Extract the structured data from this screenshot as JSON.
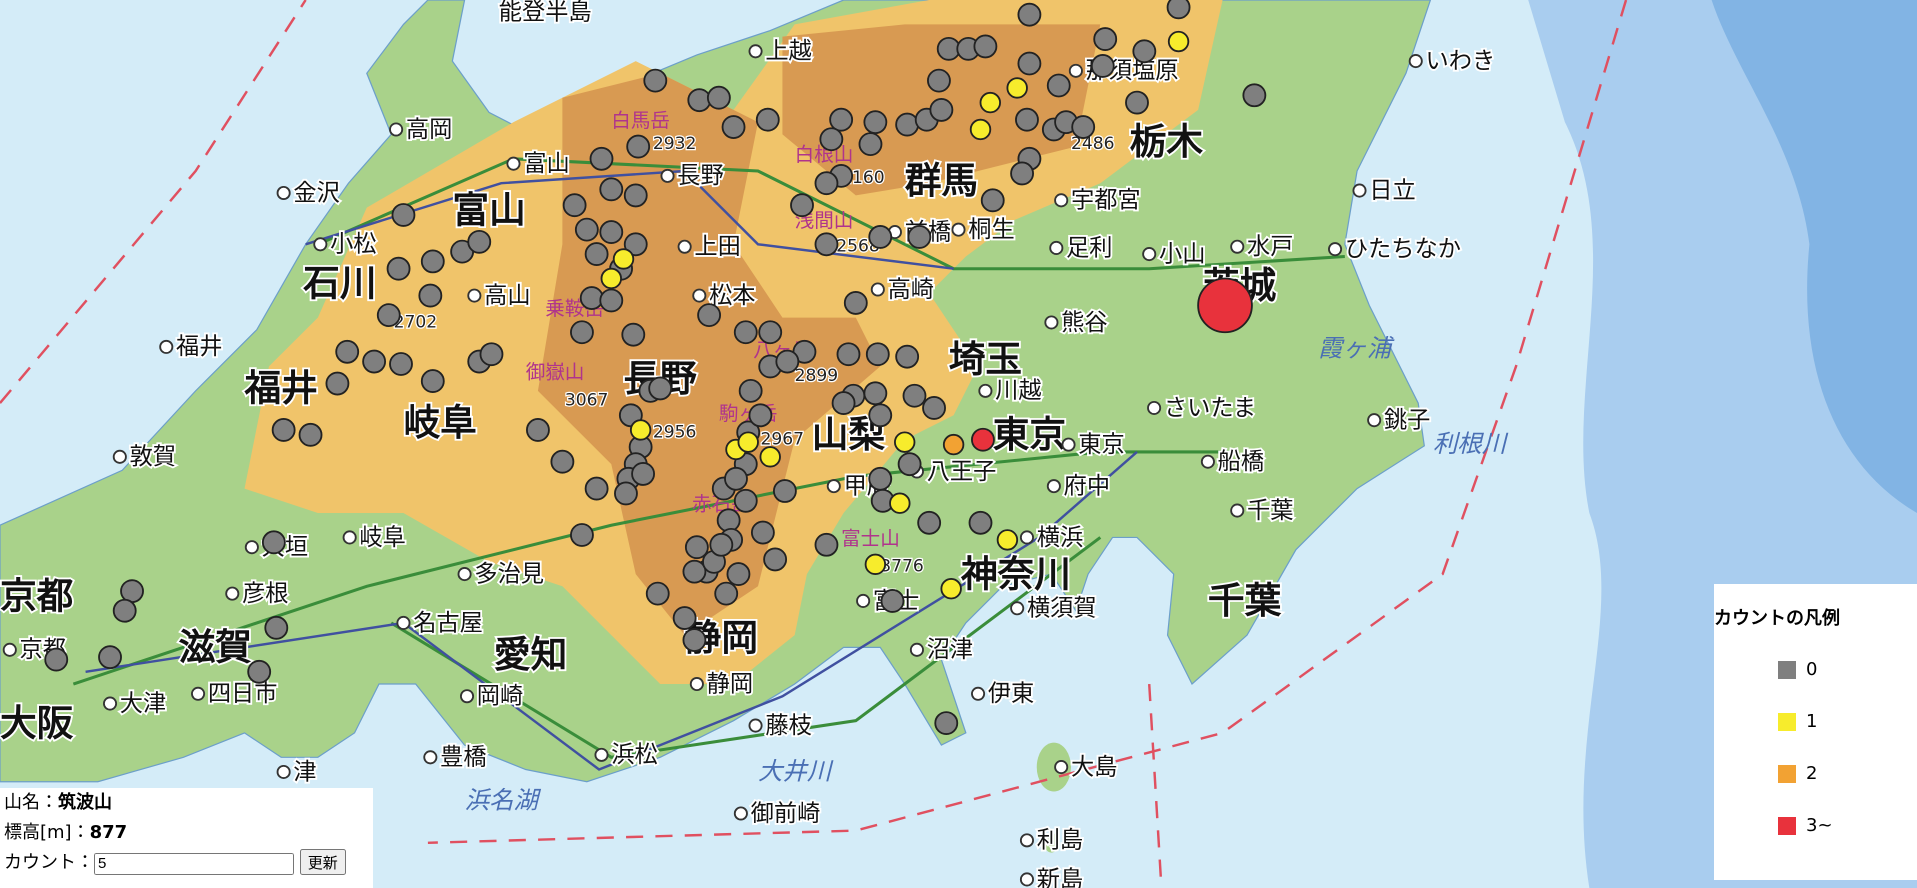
{
  "map": {
    "title": "能登半島",
    "prefectures": [
      "富山",
      "石川",
      "福井",
      "岐阜",
      "長野",
      "群馬",
      "栃木",
      "茨城",
      "埼玉",
      "東京",
      "山梨",
      "神奈川",
      "千葉",
      "静岡",
      "愛知",
      "滋賀",
      "京都",
      "大阪"
    ],
    "cities": [
      "金沢",
      "小松",
      "福井",
      "敦賀",
      "高岡",
      "富山",
      "高山",
      "長野",
      "上越",
      "上田",
      "松本",
      "前橋",
      "桐生",
      "高崎",
      "宇都宮",
      "足利",
      "小山",
      "水戸",
      "日立",
      "いわき",
      "ひたちなか",
      "熊谷",
      "川越",
      "さいたま",
      "東京",
      "八王子",
      "甲府",
      "府中",
      "横浜",
      "船橋",
      "千葉",
      "銚子",
      "横須賀",
      "富士",
      "沼津",
      "伊東",
      "静岡",
      "藤枝",
      "浜松",
      "豊橋",
      "岡崎",
      "名古屋",
      "多治見",
      "岐阜",
      "大垣",
      "彦根",
      "四日市",
      "津",
      "京都",
      "大津",
      "大島",
      "利島",
      "新島",
      "御前崎",
      "那須塩原"
    ],
    "waters": [
      "霞ヶ浦",
      "利根川",
      "大井川",
      "浜名湖"
    ],
    "mountains": [
      "白馬岳",
      "乗鞍岳",
      "御嶽山",
      "駒ヶ岳",
      "赤石岳",
      "富士山",
      "浅間山",
      "白根山",
      "八ヶ岳"
    ],
    "peak_elevations": [
      2932,
      2160,
      2486,
      2568,
      2702,
      2899,
      3067,
      2956,
      2967,
      3776
    ]
  },
  "legend": {
    "title": "カウントの凡例",
    "items": [
      {
        "label": "0",
        "color": "#7f7f7f"
      },
      {
        "label": "1",
        "color": "#f7ec2c"
      },
      {
        "label": "2",
        "color": "#f2a233"
      },
      {
        "label": "3~",
        "color": "#e8323c"
      }
    ]
  },
  "info": {
    "name_label": "山名：",
    "name": "筑波山",
    "elevation_label": "標高[m]：",
    "elevation": 877,
    "count_label": "カウント：",
    "count": 5,
    "button": "更新"
  }
}
